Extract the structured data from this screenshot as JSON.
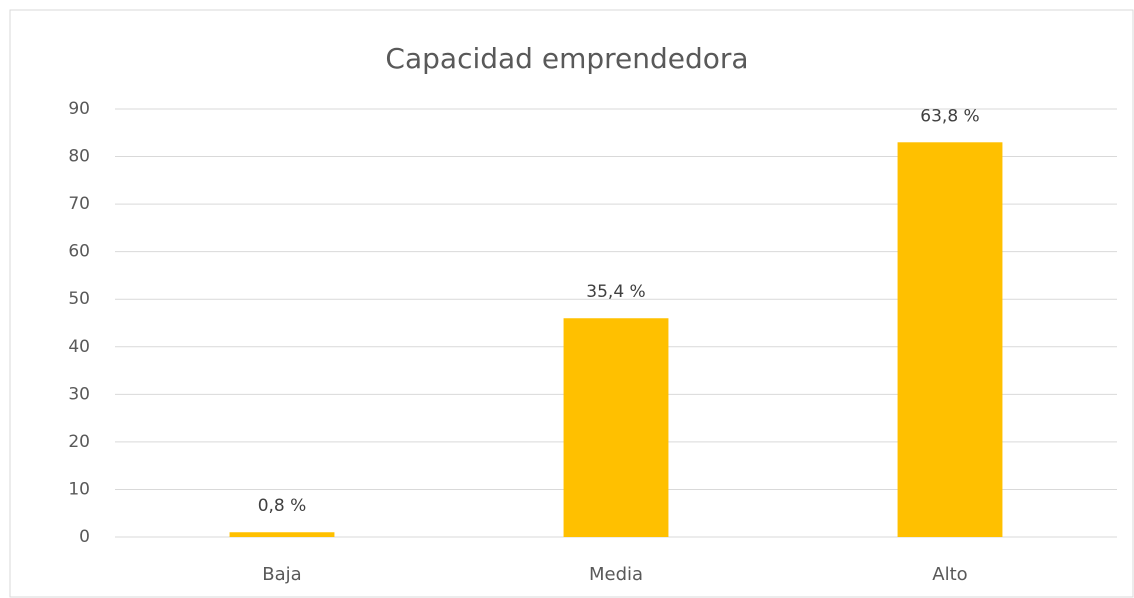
{
  "chart_data": {
    "type": "bar",
    "title": "Capacidad emprendedora",
    "categories": [
      "Baja",
      "Media",
      "Alto"
    ],
    "values": [
      1,
      46,
      83
    ],
    "data_labels": [
      "0,8 %",
      "35,4 %",
      "63,8 %"
    ],
    "color": "#ffc000",
    "ylim": [
      0,
      90
    ],
    "yticks": [
      0,
      10,
      20,
      30,
      40,
      50,
      60,
      70,
      80,
      90
    ],
    "grid": true
  }
}
